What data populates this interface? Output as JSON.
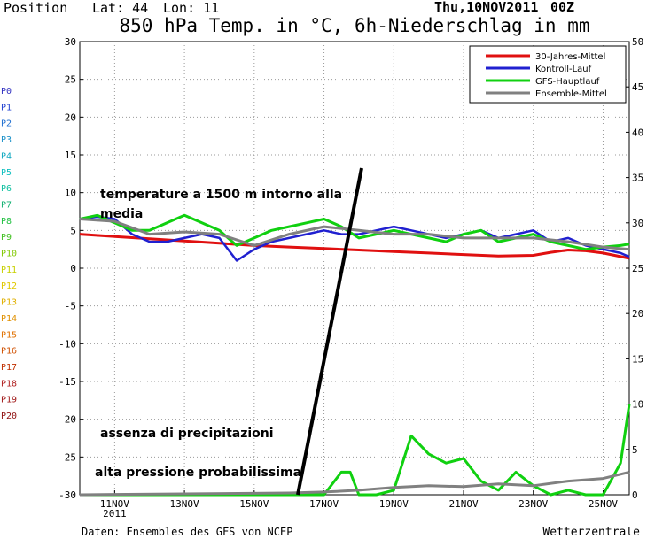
{
  "header": {
    "position_label": "Position",
    "lat_label": "Lat: 44",
    "lon_label": "Lon: 11",
    "date": "Thu,10NOV2011",
    "run": "00Z"
  },
  "footer": {
    "source": "Daten: Ensembles des GFS von NCEP",
    "brand": "Wetterzentrale"
  },
  "members": [
    "P0",
    "P1",
    "P2",
    "P3",
    "P4",
    "P5",
    "P6",
    "P7",
    "P8",
    "P9",
    "P10",
    "P11",
    "P12",
    "P13",
    "P14",
    "P15",
    "P16",
    "P17",
    "P18",
    "P19",
    "P20"
  ],
  "member_colors": [
    "#3030c0",
    "#2040d0",
    "#1f6fd0",
    "#1a90c8",
    "#10a8c0",
    "#10c0c0",
    "#10c0a0",
    "#10b070",
    "#20c040",
    "#40c020",
    "#80c800",
    "#c8d000",
    "#e0c800",
    "#e0b000",
    "#e09000",
    "#e07000",
    "#d05000",
    "#c03000",
    "#b02020",
    "#a01818",
    "#901010"
  ],
  "chart_data": {
    "type": "line",
    "title": "850 hPa Temp. in °C, 6h-Niederschlag in mm",
    "x_tick_labels": [
      "11NOV",
      "13NOV",
      "15NOV",
      "17NOV",
      "19NOV",
      "21NOV",
      "23NOV",
      "25NOV"
    ],
    "x_year_label": "2011",
    "x_range_days": [
      10.0,
      25.75
    ],
    "y_left_ticks": [
      "30",
      "25",
      "20",
      "15",
      "10",
      "5",
      "0",
      "-5",
      "-10",
      "-15",
      "-20",
      "-25",
      "-30"
    ],
    "y_left_range": [
      -30,
      30
    ],
    "y_right_ticks": [
      "50",
      "45",
      "40",
      "35",
      "30",
      "25",
      "20",
      "15",
      "10",
      "5",
      "0"
    ],
    "y_right_range": [
      0,
      50
    ],
    "grid": true,
    "legend_position": "top-right",
    "legend": [
      {
        "label": "30-Jahres-Mittel",
        "color": "#e01010"
      },
      {
        "label": "Kontroll-Lauf",
        "color": "#2020d0"
      },
      {
        "label": "GFS-Hauptlauf",
        "color": "#10d010"
      },
      {
        "label": "Ensemble-Mittel",
        "color": "#808080"
      }
    ],
    "series": [
      {
        "name": "30-Jahres-Mittel",
        "color": "#e01010",
        "x": [
          10.0,
          11.0,
          12.0,
          13.0,
          14.0,
          15.0,
          16.0,
          17.0,
          18.0,
          19.0,
          20.0,
          21.0,
          22.0,
          23.0,
          23.5,
          24.0,
          24.5,
          25.0,
          25.75
        ],
        "y": [
          4.5,
          4.2,
          3.9,
          3.6,
          3.3,
          3.0,
          2.8,
          2.6,
          2.4,
          2.2,
          2.0,
          1.8,
          1.6,
          1.7,
          2.1,
          2.4,
          2.3,
          2.0,
          1.3
        ]
      },
      {
        "name": "Kontroll-Lauf",
        "color": "#2020d0",
        "x": [
          10.0,
          10.5,
          11.0,
          11.5,
          12.0,
          12.5,
          13.0,
          13.5,
          14.0,
          14.5,
          15.0,
          15.5,
          16.0,
          16.5,
          17.0,
          17.5,
          18.0,
          18.5,
          19.0,
          19.5,
          20.0,
          20.5,
          21.0,
          21.5,
          22.0,
          22.5,
          23.0,
          23.5,
          24.0,
          24.5,
          25.0,
          25.5,
          25.75
        ],
        "y": [
          6.5,
          6.8,
          6.5,
          4.5,
          3.5,
          3.5,
          4.0,
          4.5,
          4.0,
          1.0,
          2.5,
          3.5,
          4.0,
          4.5,
          5.0,
          4.5,
          4.5,
          5.0,
          5.5,
          5.0,
          4.5,
          4.0,
          4.5,
          5.0,
          4.0,
          4.5,
          5.0,
          3.5,
          4.0,
          3.0,
          2.5,
          2.0,
          1.5
        ]
      },
      {
        "name": "GFS-Hauptlauf",
        "color": "#10d010",
        "x": [
          10.0,
          10.5,
          11.0,
          11.5,
          12.0,
          12.5,
          13.0,
          13.5,
          14.0,
          14.5,
          15.0,
          15.5,
          16.0,
          16.5,
          17.0,
          17.5,
          18.0,
          18.5,
          19.0,
          19.5,
          20.0,
          20.5,
          21.0,
          21.5,
          22.0,
          22.5,
          23.0,
          23.5,
          24.0,
          24.5,
          25.0,
          25.5,
          25.75
        ],
        "y": [
          6.5,
          7.0,
          6.0,
          5.0,
          5.0,
          6.0,
          7.0,
          6.0,
          5.0,
          3.0,
          4.0,
          5.0,
          5.5,
          6.0,
          6.5,
          5.5,
          4.0,
          4.5,
          5.0,
          4.5,
          4.0,
          3.5,
          4.5,
          5.0,
          3.5,
          4.0,
          4.5,
          3.5,
          3.0,
          2.5,
          2.8,
          3.0,
          3.2
        ]
      },
      {
        "name": "Ensemble-Mittel",
        "color": "#808080",
        "x": [
          10.0,
          11.0,
          12.0,
          13.0,
          14.0,
          15.0,
          16.0,
          17.0,
          18.0,
          19.0,
          20.0,
          21.0,
          22.0,
          23.0,
          24.0,
          25.0,
          25.75
        ],
        "y": [
          6.5,
          6.2,
          4.5,
          4.8,
          4.5,
          3.0,
          4.5,
          5.5,
          5.0,
          4.5,
          4.5,
          4.0,
          4.0,
          4.0,
          3.5,
          2.8,
          2.5
        ]
      },
      {
        "name": "GFS-Hauptlauf",
        "color": "#10d010",
        "axis": "right",
        "x": [
          10.0,
          16.0,
          17.0,
          17.5,
          17.75,
          18.0,
          18.5,
          19.0,
          19.5,
          20.0,
          20.5,
          21.0,
          21.5,
          22.0,
          22.5,
          23.0,
          23.5,
          24.0,
          24.5,
          25.0,
          25.5,
          25.75
        ],
        "y": [
          0,
          0,
          0,
          2.5,
          2.5,
          0,
          0,
          0.5,
          6.5,
          4.5,
          3.5,
          4.0,
          1.5,
          0.5,
          2.5,
          1.0,
          0,
          0.5,
          0,
          0,
          3.5,
          10.0
        ]
      },
      {
        "name": "Ensemble-Mittel",
        "color": "#808080",
        "axis": "right",
        "x": [
          10.0,
          16.0,
          17.0,
          18.0,
          19.0,
          20.0,
          21.0,
          22.0,
          23.0,
          24.0,
          25.0,
          25.75
        ],
        "y": [
          0,
          0.2,
          0.3,
          0.5,
          0.8,
          1.0,
          0.9,
          1.2,
          1.0,
          1.5,
          1.8,
          2.5
        ]
      }
    ],
    "annotations": [
      "temperature a 1500 m intorno alla media",
      "assenza di precipitazioni",
      "alta pressione probabilissima"
    ]
  }
}
